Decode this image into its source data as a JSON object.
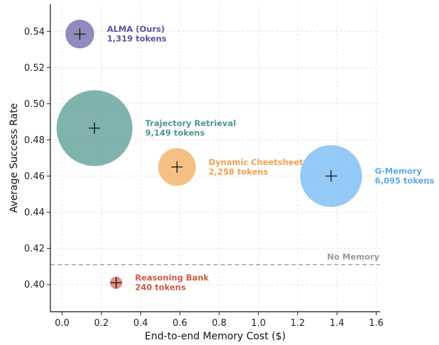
{
  "chart_data": {
    "type": "scatter",
    "title": "",
    "xlabel": "End-to-end Memory Cost ($)",
    "ylabel": "Average Success Rate",
    "xlim": [
      -0.06,
      1.62
    ],
    "ylim": [
      0.385,
      0.555
    ],
    "xticks": [
      0.0,
      0.2,
      0.4,
      0.6,
      0.8,
      1.0,
      1.2,
      1.4,
      1.6
    ],
    "xtick_labels": [
      "0.0",
      "0.2",
      "0.4",
      "0.6",
      "0.8",
      "1.0",
      "1.2",
      "1.4",
      "1.6"
    ],
    "yticks": [
      0.4,
      0.42,
      0.44,
      0.46,
      0.48,
      0.5,
      0.52,
      0.54
    ],
    "ytick_labels": [
      "0.40",
      "0.42",
      "0.44",
      "0.46",
      "0.48",
      "0.50",
      "0.52",
      "0.54"
    ],
    "grid": true,
    "bubble_size_metric": "tokens",
    "points": [
      {
        "name": "ALMA (Ours)",
        "tokens_label": "1,319 tokens",
        "tokens": 1319,
        "x": 0.09,
        "y": 0.5385,
        "color": "#7b77b3"
      },
      {
        "name": "Trajectory Retrieval",
        "tokens_label": "9,149 tokens",
        "tokens": 9149,
        "x": 0.165,
        "y": 0.4865,
        "color": "#6aa69f"
      },
      {
        "name": "Dynamic Cheetsheet",
        "tokens_label": "2,258 tokens",
        "tokens": 2258,
        "x": 0.585,
        "y": 0.465,
        "color": "#f5b570"
      },
      {
        "name": "G-Memory",
        "tokens_label": "6,095 tokens",
        "tokens": 6095,
        "x": 1.37,
        "y": 0.46,
        "color": "#82bff5"
      },
      {
        "name": "Reasoning Bank",
        "tokens_label": "240 tokens",
        "tokens": 240,
        "x": 0.275,
        "y": 0.401,
        "color": "#dd7d6b"
      }
    ],
    "label_colors": [
      "#5b55a0",
      "#4f9690",
      "#f0a050",
      "#5aaaf0",
      "#d05a45"
    ],
    "baseline": {
      "label": "No Memory",
      "y": 0.411,
      "color": "#9a9a9a"
    }
  }
}
